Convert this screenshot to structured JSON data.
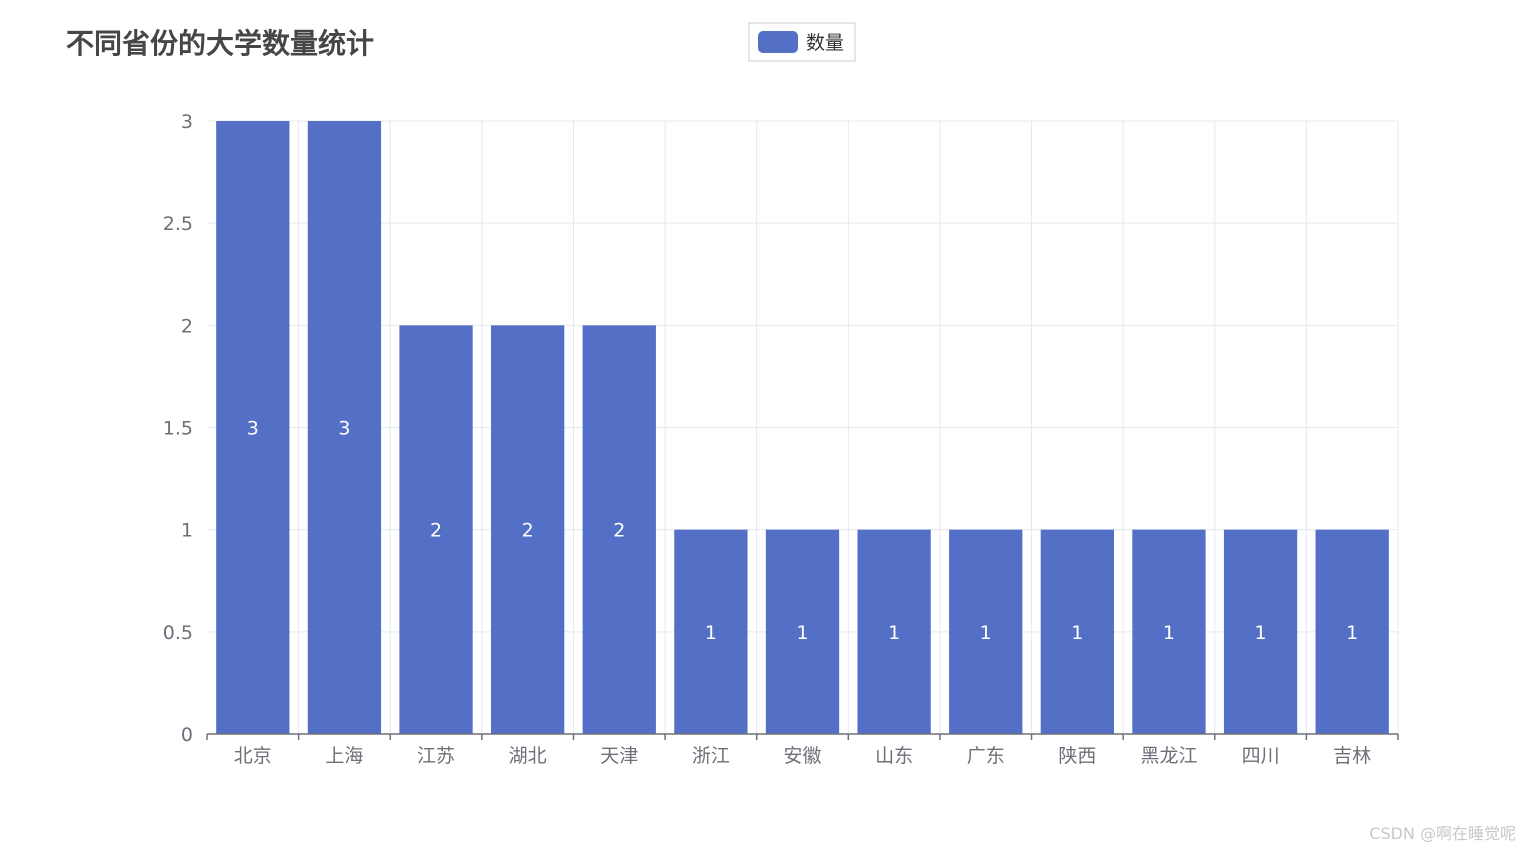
{
  "chart_data": {
    "type": "bar",
    "title": "不同省份的大学数量统计",
    "legend": {
      "entries": [
        "数量"
      ],
      "placement": "top-center"
    },
    "categories": [
      "北京",
      "上海",
      "江苏",
      "湖北",
      "天津",
      "浙江",
      "安徽",
      "山东",
      "广东",
      "陕西",
      "黑龙江",
      "四川",
      "吉林"
    ],
    "series": [
      {
        "name": "数量",
        "values": [
          3,
          3,
          2,
          2,
          2,
          1,
          1,
          1,
          1,
          1,
          1,
          1,
          1
        ]
      }
    ],
    "yticks": [
      "0",
      "0.5",
      "1",
      "1.5",
      "2",
      "2.5",
      "3"
    ],
    "ylim": [
      0,
      3
    ],
    "xlabel": "",
    "ylabel": "",
    "grid": true,
    "data_labels": "inside-center",
    "colors": {
      "bar": "#5470c6",
      "grid": "#e4e9ee",
      "axis": "#6e7079"
    }
  },
  "watermark": "CSDN @啊在睡觉呢"
}
